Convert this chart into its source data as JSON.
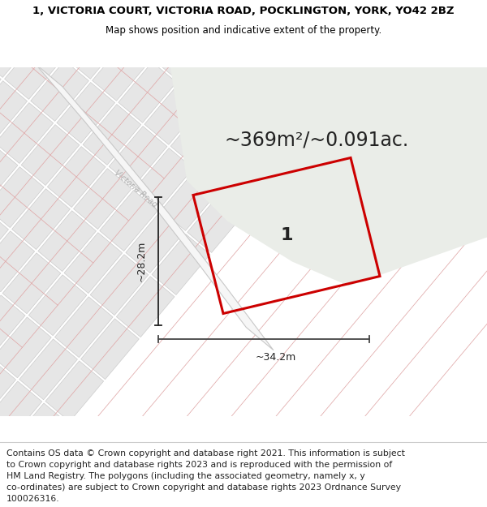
{
  "title_line1": "1, VICTORIA COURT, VICTORIA ROAD, POCKLINGTON, YORK, YO42 2BZ",
  "title_line2": "Map shows position and indicative extent of the property.",
  "area_text": "~369m²/~0.091ac.",
  "label_width": "~34.2m",
  "label_height": "~28.2m",
  "plot_label": "1",
  "road_label": "Victoria Road",
  "footer_text_lines": [
    "Contains OS data © Crown copyright and database right 2021. This information is subject",
    "to Crown copyright and database rights 2023 and is reproduced with the permission of",
    "HM Land Registry. The polygons (including the associated geometry, namely x, y",
    "co-ordinates) are subject to Crown copyright and database rights 2023 Ordnance Survey",
    "100026316."
  ],
  "map_bg": "#ebebeb",
  "parcel_bg": "#e8e8e8",
  "parcel_edge_gray": "#c8c8c8",
  "parcel_edge_red": "#e8b0b0",
  "road_fill": "#f8f8f8",
  "road_edge": "#d0d0d0",
  "green_fill": "#eaede8",
  "prop_edge": "#cc0000",
  "title_fontsize": 9.5,
  "subtitle_fontsize": 8.5,
  "area_fontsize": 17,
  "footer_fontsize": 7.8,
  "road_label_fontsize": 7,
  "plot_label_fontsize": 16,
  "dim_label_fontsize": 9
}
